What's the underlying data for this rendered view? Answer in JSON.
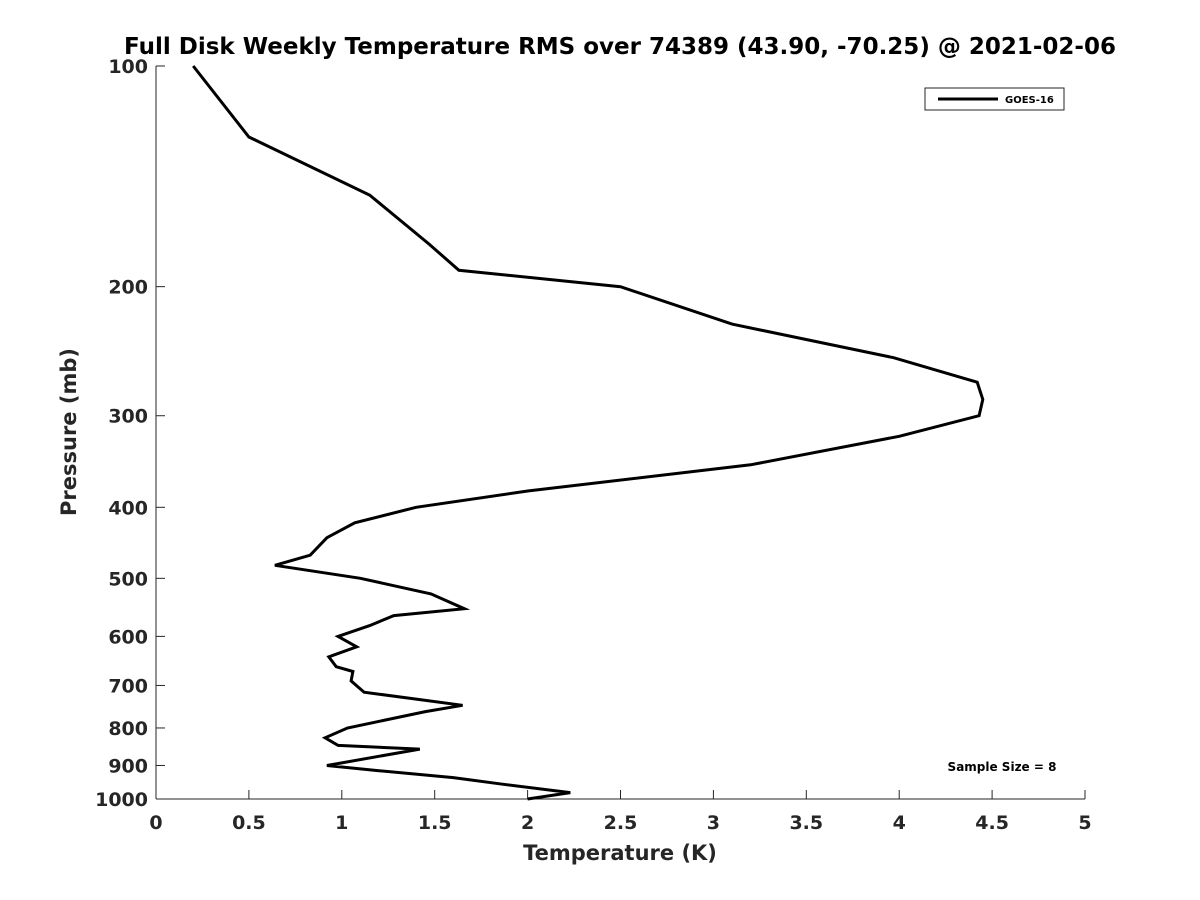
{
  "chart_data": {
    "type": "line",
    "title": "Full Disk Weekly Temperature RMS over 74389 (43.90, -70.25) @ 2021-02-06",
    "xlabel": "Temperature (K)",
    "ylabel": "Pressure (mb)",
    "xlim": [
      0,
      5
    ],
    "ylim": [
      100,
      1000
    ],
    "y_scale": "log",
    "y_reversed": true,
    "x_ticks": [
      "0",
      "0.5",
      "1",
      "1.5",
      "2",
      "2.5",
      "3",
      "3.5",
      "4",
      "4.5",
      "5"
    ],
    "x_tick_values": [
      0,
      0.5,
      1,
      1.5,
      2,
      2.5,
      3,
      3.5,
      4,
      4.5,
      5
    ],
    "y_ticks": [
      "100",
      "200",
      "300",
      "400",
      "500",
      "600",
      "700",
      "800",
      "900",
      "1000"
    ],
    "y_tick_values": [
      100,
      200,
      300,
      400,
      500,
      600,
      700,
      800,
      900,
      1000
    ],
    "grid": false,
    "legend_position": "top-right",
    "annotation": "Sample Size = 8",
    "series": [
      {
        "name": "GOES-16",
        "color": "#000000",
        "points": [
          [
            0.2,
            100
          ],
          [
            0.5,
            125
          ],
          [
            1.15,
            150
          ],
          [
            1.47,
            175
          ],
          [
            1.63,
            190
          ],
          [
            2.5,
            200
          ],
          [
            3.1,
            225
          ],
          [
            3.97,
            250
          ],
          [
            4.42,
            270
          ],
          [
            4.45,
            285
          ],
          [
            4.43,
            300
          ],
          [
            4.0,
            320
          ],
          [
            3.2,
            350
          ],
          [
            2.0,
            380
          ],
          [
            1.4,
            400
          ],
          [
            1.07,
            420
          ],
          [
            0.92,
            440
          ],
          [
            0.83,
            465
          ],
          [
            0.64,
            480
          ],
          [
            1.1,
            500
          ],
          [
            1.48,
            525
          ],
          [
            1.66,
            550
          ],
          [
            1.28,
            562
          ],
          [
            1.15,
            580
          ],
          [
            0.98,
            600
          ],
          [
            1.08,
            620
          ],
          [
            0.93,
            640
          ],
          [
            0.97,
            660
          ],
          [
            1.06,
            670
          ],
          [
            1.05,
            690
          ],
          [
            1.12,
            715
          ],
          [
            1.65,
            745
          ],
          [
            1.45,
            760
          ],
          [
            1.03,
            800
          ],
          [
            0.91,
            825
          ],
          [
            0.98,
            845
          ],
          [
            1.42,
            855
          ],
          [
            0.92,
            900
          ],
          [
            1.2,
            915
          ],
          [
            1.6,
            935
          ],
          [
            1.87,
            955
          ],
          [
            2.23,
            980
          ],
          [
            2.0,
            1000
          ]
        ]
      }
    ]
  }
}
